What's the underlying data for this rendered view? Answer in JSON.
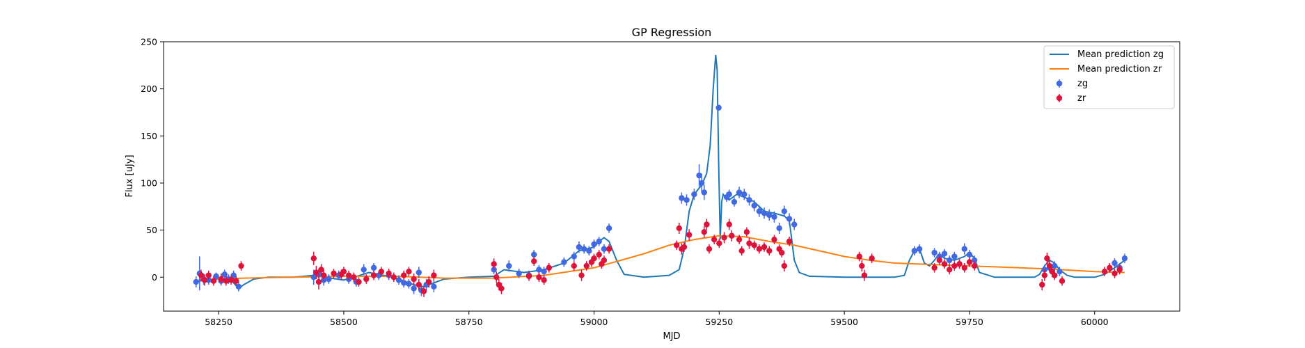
{
  "chart_data": {
    "type": "scatter",
    "title": "GP Regression",
    "xlabel": "MJD",
    "ylabel": "Flux [uJy]",
    "xlim": [
      58140,
      60170
    ],
    "ylim": [
      -36,
      250
    ],
    "xticks": [
      58250,
      58500,
      58750,
      59000,
      59250,
      59500,
      59750,
      60000
    ],
    "yticks": [
      0,
      50,
      100,
      150,
      200,
      250
    ],
    "grid": false,
    "legend_position": "top-right",
    "colors": {
      "zg_line": "#1f77b4",
      "zr_line": "#ff7f0e",
      "zg_points": "#4169e1",
      "zr_points": "#dc143c"
    },
    "lines": [
      {
        "name": "Mean prediction zg",
        "color": "#1f77b4",
        "x": [
          58210,
          58250,
          58260,
          58275,
          58290,
          58300,
          58320,
          58350,
          58400,
          58440,
          58460,
          58500,
          58520,
          58550,
          58600,
          58620,
          58640,
          58660,
          58680,
          58700,
          58750,
          58800,
          58820,
          58860,
          58900,
          58940,
          58970,
          59000,
          59010,
          59020,
          59030,
          59045,
          59060,
          59100,
          59150,
          59170,
          59180,
          59190,
          59200,
          59215,
          59225,
          59232,
          59238,
          59243,
          59246,
          59249,
          59252,
          59255,
          59258,
          59262,
          59270,
          59285,
          59300,
          59320,
          59340,
          59360,
          59380,
          59390,
          59395,
          59400,
          59410,
          59430,
          59500,
          59550,
          59600,
          59620,
          59630,
          59640,
          59650,
          59660,
          59670,
          59680,
          59690,
          59700,
          59720,
          59740,
          59750,
          59760,
          59770,
          59800,
          59850,
          59880,
          59890,
          59900,
          59910,
          59920,
          59930,
          59945,
          59960,
          60000,
          60020,
          60040,
          60060
        ],
        "y": [
          -4,
          -2,
          2,
          -3,
          -12,
          -8,
          -2,
          0,
          0,
          2,
          0,
          -3,
          0,
          5,
          0,
          -4,
          -8,
          -10,
          -6,
          -2,
          0,
          1,
          8,
          5,
          8,
          15,
          28,
          32,
          38,
          42,
          38,
          18,
          3,
          0,
          2,
          8,
          30,
          70,
          88,
          98,
          110,
          140,
          200,
          236,
          220,
          120,
          40,
          80,
          88,
          85,
          82,
          88,
          85,
          80,
          70,
          68,
          65,
          60,
          40,
          18,
          5,
          1,
          0,
          0,
          0,
          2,
          18,
          28,
          30,
          15,
          12,
          18,
          25,
          20,
          18,
          22,
          26,
          20,
          5,
          0,
          0,
          0,
          3,
          12,
          18,
          15,
          8,
          2,
          0,
          0,
          3,
          10,
          18
        ]
      },
      {
        "name": "Mean prediction zr",
        "color": "#ff7f0e",
        "x": [
          58210,
          58300,
          58400,
          58500,
          58600,
          58700,
          58800,
          58900,
          59000,
          59100,
          59150,
          59200,
          59250,
          59300,
          59350,
          59400,
          59450,
          59500,
          59550,
          59600,
          59700,
          59800,
          59900,
          60000,
          60060
        ],
        "y": [
          -3,
          -1,
          0,
          1,
          1,
          -1,
          -1,
          2,
          10,
          25,
          34,
          40,
          44,
          43,
          38,
          34,
          28,
          22,
          18,
          15,
          13,
          11,
          9,
          6,
          5
        ]
      }
    ],
    "series": [
      {
        "name": "zg",
        "color": "#4169e1",
        "points": [
          [
            58205,
            -5,
            6
          ],
          [
            58212,
            4,
            18
          ],
          [
            58220,
            -2,
            6
          ],
          [
            58230,
            -3,
            5
          ],
          [
            58245,
            1,
            4
          ],
          [
            58255,
            -4,
            5
          ],
          [
            58262,
            3,
            5
          ],
          [
            58270,
            -2,
            5
          ],
          [
            58280,
            2,
            5
          ],
          [
            58290,
            -10,
            5
          ],
          [
            58440,
            0,
            8
          ],
          [
            58450,
            3,
            6
          ],
          [
            58460,
            -3,
            6
          ],
          [
            58470,
            -2,
            5
          ],
          [
            58490,
            2,
            5
          ],
          [
            58510,
            -2,
            5
          ],
          [
            58525,
            -5,
            5
          ],
          [
            58540,
            8,
            6
          ],
          [
            58560,
            10,
            5
          ],
          [
            58570,
            2,
            5
          ],
          [
            58590,
            2,
            5
          ],
          [
            58610,
            -3,
            5
          ],
          [
            58620,
            -6,
            5
          ],
          [
            58630,
            -7,
            5
          ],
          [
            58640,
            -12,
            6
          ],
          [
            58650,
            5,
            6
          ],
          [
            58655,
            -14,
            6
          ],
          [
            58665,
            -8,
            6
          ],
          [
            58680,
            -10,
            6
          ],
          [
            58800,
            8,
            5
          ],
          [
            58830,
            12,
            6
          ],
          [
            58850,
            4,
            5
          ],
          [
            58870,
            2,
            5
          ],
          [
            58880,
            24,
            5
          ],
          [
            58890,
            8,
            5
          ],
          [
            58900,
            6,
            5
          ],
          [
            58940,
            16,
            5
          ],
          [
            58960,
            22,
            5
          ],
          [
            58970,
            32,
            6
          ],
          [
            58980,
            30,
            5
          ],
          [
            58990,
            28,
            5
          ],
          [
            59000,
            35,
            5
          ],
          [
            59010,
            38,
            5
          ],
          [
            59020,
            30,
            5
          ],
          [
            59030,
            52,
            5
          ],
          [
            59175,
            84,
            6
          ],
          [
            59185,
            82,
            6
          ],
          [
            59200,
            88,
            6
          ],
          [
            59210,
            108,
            12
          ],
          [
            59215,
            100,
            10
          ],
          [
            59220,
            90,
            8
          ],
          [
            59249,
            180,
            3
          ],
          [
            59265,
            85,
            5
          ],
          [
            59270,
            88,
            5
          ],
          [
            59280,
            80,
            5
          ],
          [
            59290,
            90,
            6
          ],
          [
            59300,
            88,
            6
          ],
          [
            59310,
            82,
            6
          ],
          [
            59320,
            76,
            6
          ],
          [
            59330,
            70,
            6
          ],
          [
            59340,
            68,
            6
          ],
          [
            59350,
            66,
            6
          ],
          [
            59360,
            64,
            6
          ],
          [
            59370,
            52,
            6
          ],
          [
            59380,
            70,
            6
          ],
          [
            59390,
            62,
            6
          ],
          [
            59400,
            56,
            6
          ],
          [
            59640,
            28,
            5
          ],
          [
            59650,
            30,
            5
          ],
          [
            59680,
            26,
            5
          ],
          [
            59690,
            22,
            5
          ],
          [
            59700,
            25,
            5
          ],
          [
            59710,
            18,
            5
          ],
          [
            59720,
            22,
            5
          ],
          [
            59730,
            14,
            5
          ],
          [
            59740,
            30,
            6
          ],
          [
            59750,
            24,
            5
          ],
          [
            59760,
            18,
            5
          ],
          [
            59900,
            8,
            5
          ],
          [
            59910,
            10,
            5
          ],
          [
            59920,
            12,
            5
          ],
          [
            59930,
            6,
            5
          ],
          [
            60040,
            15,
            5
          ],
          [
            60050,
            10,
            5
          ],
          [
            60060,
            20,
            5
          ]
        ]
      },
      {
        "name": "zr",
        "color": "#dc143c",
        "points": [
          [
            58215,
            2,
            6
          ],
          [
            58222,
            -3,
            6
          ],
          [
            58230,
            2,
            5
          ],
          [
            58240,
            -4,
            5
          ],
          [
            58255,
            -2,
            6
          ],
          [
            58265,
            -4,
            5
          ],
          [
            58275,
            -3,
            5
          ],
          [
            58285,
            -4,
            5
          ],
          [
            58295,
            12,
            5
          ],
          [
            58440,
            20,
            7
          ],
          [
            58445,
            5,
            7
          ],
          [
            58450,
            -5,
            8
          ],
          [
            58455,
            8,
            6
          ],
          [
            58460,
            2,
            6
          ],
          [
            58480,
            4,
            5
          ],
          [
            58495,
            3,
            5
          ],
          [
            58500,
            6,
            5
          ],
          [
            58510,
            2,
            5
          ],
          [
            58520,
            0,
            5
          ],
          [
            58530,
            -5,
            5
          ],
          [
            58545,
            -2,
            5
          ],
          [
            58560,
            2,
            5
          ],
          [
            58575,
            6,
            5
          ],
          [
            58590,
            4,
            5
          ],
          [
            58600,
            0,
            5
          ],
          [
            58620,
            2,
            5
          ],
          [
            58630,
            6,
            5
          ],
          [
            58640,
            -2,
            6
          ],
          [
            58650,
            -8,
            6
          ],
          [
            58660,
            -15,
            6
          ],
          [
            58670,
            -5,
            6
          ],
          [
            58680,
            2,
            6
          ],
          [
            58800,
            14,
            6
          ],
          [
            58805,
            0,
            6
          ],
          [
            58810,
            -8,
            6
          ],
          [
            58815,
            -12,
            6
          ],
          [
            58870,
            1,
            5
          ],
          [
            58880,
            17,
            5
          ],
          [
            58890,
            0,
            5
          ],
          [
            58900,
            -3,
            5
          ],
          [
            58910,
            10,
            5
          ],
          [
            58960,
            12,
            5
          ],
          [
            58975,
            2,
            6
          ],
          [
            58985,
            12,
            5
          ],
          [
            58995,
            16,
            5
          ],
          [
            59000,
            20,
            5
          ],
          [
            59010,
            24,
            5
          ],
          [
            59015,
            14,
            5
          ],
          [
            59020,
            18,
            5
          ],
          [
            59030,
            30,
            5
          ],
          [
            59165,
            34,
            5
          ],
          [
            59170,
            52,
            6
          ],
          [
            59175,
            30,
            6
          ],
          [
            59180,
            32,
            5
          ],
          [
            59190,
            45,
            6
          ],
          [
            59220,
            48,
            6
          ],
          [
            59225,
            56,
            6
          ],
          [
            59230,
            30,
            5
          ],
          [
            59240,
            40,
            5
          ],
          [
            59250,
            36,
            5
          ],
          [
            59260,
            42,
            6
          ],
          [
            59270,
            56,
            6
          ],
          [
            59275,
            44,
            6
          ],
          [
            59290,
            40,
            5
          ],
          [
            59295,
            28,
            5
          ],
          [
            59305,
            48,
            5
          ],
          [
            59310,
            36,
            6
          ],
          [
            59320,
            34,
            5
          ],
          [
            59330,
            30,
            5
          ],
          [
            59340,
            32,
            5
          ],
          [
            59350,
            28,
            5
          ],
          [
            59360,
            40,
            5
          ],
          [
            59370,
            30,
            5
          ],
          [
            59375,
            26,
            5
          ],
          [
            59380,
            12,
            6
          ],
          [
            59390,
            38,
            5
          ],
          [
            59530,
            22,
            5
          ],
          [
            59535,
            12,
            6
          ],
          [
            59540,
            2,
            6
          ],
          [
            59555,
            20,
            5
          ],
          [
            59680,
            10,
            5
          ],
          [
            59690,
            18,
            5
          ],
          [
            59700,
            14,
            5
          ],
          [
            59710,
            8,
            5
          ],
          [
            59720,
            12,
            5
          ],
          [
            59730,
            14,
            5
          ],
          [
            59740,
            10,
            5
          ],
          [
            59750,
            16,
            5
          ],
          [
            59760,
            12,
            5
          ],
          [
            59895,
            -8,
            6
          ],
          [
            59900,
            2,
            6
          ],
          [
            59905,
            20,
            6
          ],
          [
            59910,
            12,
            6
          ],
          [
            59915,
            6,
            6
          ],
          [
            59920,
            2,
            5
          ],
          [
            59935,
            -4,
            5
          ],
          [
            60020,
            6,
            5
          ],
          [
            60030,
            10,
            5
          ],
          [
            60040,
            4,
            5
          ],
          [
            60050,
            8,
            5
          ]
        ]
      }
    ]
  }
}
